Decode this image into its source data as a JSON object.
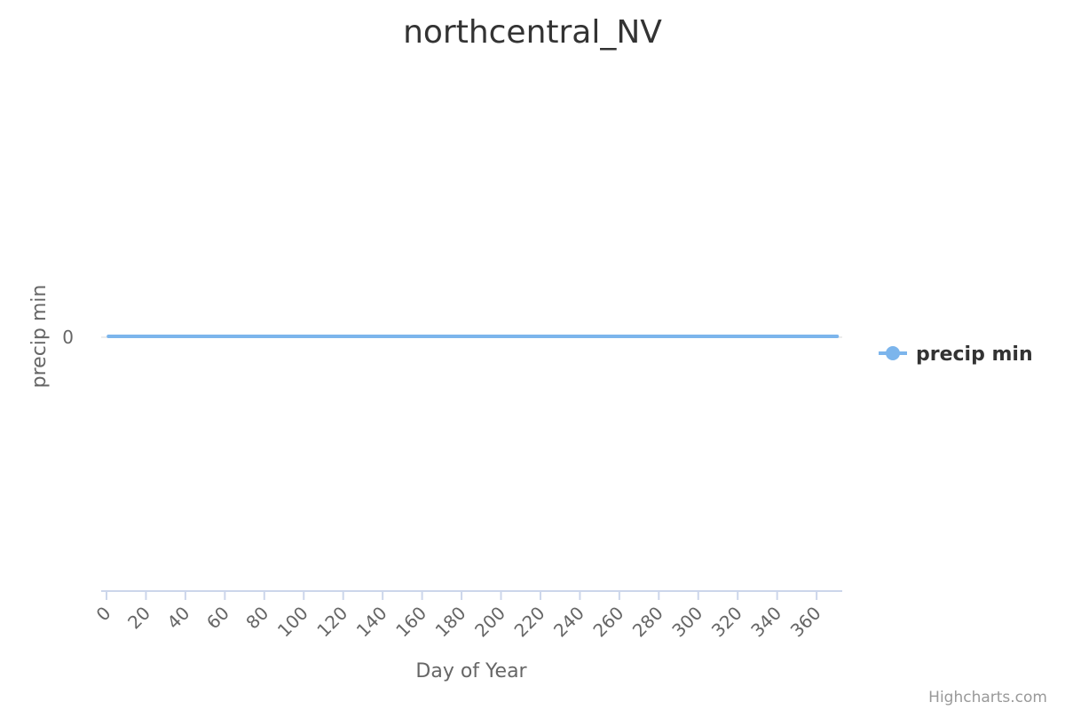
{
  "chart_data": {
    "type": "line",
    "title": "northcentral_NV",
    "xlabel": "Day of Year",
    "ylabel": "precip min",
    "xlim": [
      0,
      366
    ],
    "x_ticks": [
      0,
      20,
      40,
      60,
      80,
      100,
      120,
      140,
      160,
      180,
      200,
      220,
      240,
      260,
      280,
      300,
      320,
      340,
      360
    ],
    "y_ticks": [
      0
    ],
    "grid": false,
    "legend": "right",
    "series": [
      {
        "name": "precip min",
        "color": "#7cb5ec",
        "x_start": 1,
        "x_end": 365,
        "value": 0
      }
    ]
  },
  "credits": "Highcharts.com"
}
